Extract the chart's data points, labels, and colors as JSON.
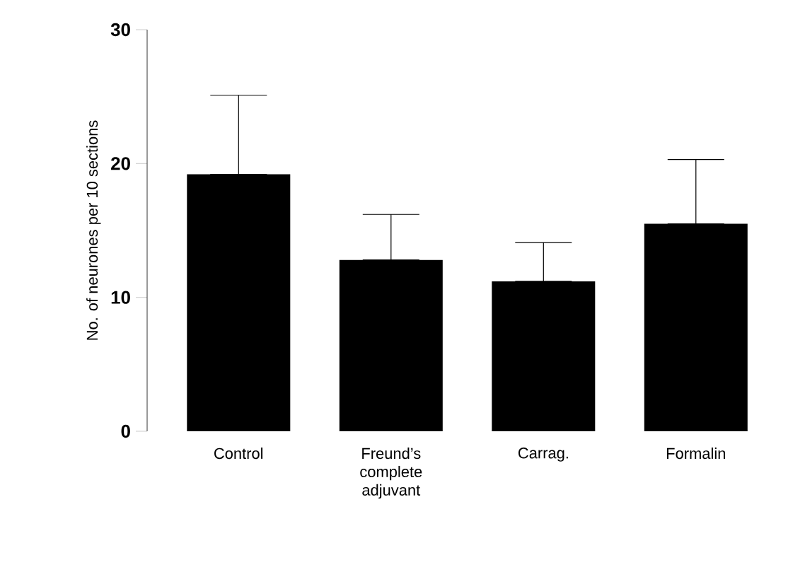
{
  "chart_data": {
    "type": "bar",
    "ylabel": "No. of neurones per 10 sections",
    "categories": [
      "Control",
      "Freund’s complete adjuvant",
      "Carrag.",
      "Formalin"
    ],
    "values": [
      19.2,
      12.8,
      11.2,
      15.5
    ],
    "errors": [
      [
        19.2,
        25.1
      ],
      [
        12.8,
        16.2
      ],
      [
        11.2,
        14.1
      ],
      [
        15.5,
        20.3
      ]
    ],
    "color": "#000000",
    "ylim": [
      0,
      30
    ],
    "yticks": [
      0,
      10,
      20,
      30
    ]
  }
}
